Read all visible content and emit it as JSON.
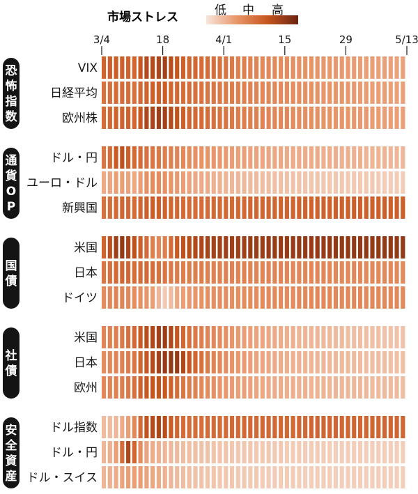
{
  "chart_data": {
    "type": "heatmap",
    "legend": {
      "title": "市場ストレス",
      "levels": [
        "低",
        "中",
        "高"
      ],
      "colors": [
        "#f7e6dc",
        "#e8966a",
        "#c8561f",
        "#6b2410"
      ]
    },
    "x_ticks": [
      {
        "label": "3/4",
        "col": 0
      },
      {
        "label": "18",
        "col": 10
      },
      {
        "label": "4/1",
        "col": 20
      },
      {
        "label": "15",
        "col": 30
      },
      {
        "label": "29",
        "col": 40
      },
      {
        "label": "5/13",
        "col": 50
      }
    ],
    "columns": 50,
    "groups": [
      {
        "label": "恐怖指数",
        "rows": [
          {
            "name": "VIX",
            "values": [
              0.6,
              0.62,
              0.63,
              0.62,
              0.6,
              0.58,
              0.66,
              0.74,
              0.74,
              0.77,
              0.8,
              0.72,
              0.66,
              0.61,
              0.58,
              0.57,
              0.55,
              0.55,
              0.53,
              0.52,
              0.5,
              0.48,
              0.46,
              0.45,
              0.43,
              0.42,
              0.4,
              0.4,
              0.39,
              0.38,
              0.38,
              0.37,
              0.36,
              0.35,
              0.35,
              0.34,
              0.33,
              0.33,
              0.32,
              0.32,
              0.31,
              0.31,
              0.3,
              0.3,
              0.3,
              0.29,
              0.29,
              0.29,
              0.28,
              0.28
            ]
          },
          {
            "name": "日経平均",
            "values": [
              0.52,
              0.53,
              0.55,
              0.55,
              0.54,
              0.52,
              0.56,
              0.6,
              0.62,
              0.62,
              0.63,
              0.58,
              0.56,
              0.54,
              0.53,
              0.52,
              0.51,
              0.5,
              0.49,
              0.48,
              0.47,
              0.46,
              0.45,
              0.44,
              0.43,
              0.42,
              0.41,
              0.4,
              0.4,
              0.39,
              0.38,
              0.38,
              0.37,
              0.36,
              0.36,
              0.35,
              0.34,
              0.34,
              0.33,
              0.33,
              0.32,
              0.32,
              0.31,
              0.31,
              0.3,
              0.3,
              0.3,
              0.29,
              0.29,
              0.29
            ]
          },
          {
            "name": "欧州株",
            "values": [
              0.55,
              0.57,
              0.6,
              0.6,
              0.6,
              0.58,
              0.66,
              0.76,
              0.78,
              0.82,
              0.8,
              0.74,
              0.68,
              0.62,
              0.58,
              0.56,
              0.55,
              0.54,
              0.52,
              0.51,
              0.5,
              0.48,
              0.47,
              0.46,
              0.45,
              0.44,
              0.43,
              0.42,
              0.41,
              0.4,
              0.4,
              0.39,
              0.38,
              0.37,
              0.37,
              0.36,
              0.35,
              0.35,
              0.34,
              0.34,
              0.33,
              0.33,
              0.32,
              0.32,
              0.31,
              0.31,
              0.3,
              0.3,
              0.3,
              0.29
            ]
          }
        ]
      },
      {
        "label": "通貨OP",
        "rows": [
          {
            "name": "ドル・円",
            "values": [
              0.5,
              0.55,
              0.65,
              0.7,
              0.62,
              0.56,
              0.55,
              0.52,
              0.5,
              0.48,
              0.45,
              0.44,
              0.42,
              0.4,
              0.38,
              0.36,
              0.35,
              0.34,
              0.33,
              0.32,
              0.31,
              0.3,
              0.3,
              0.29,
              0.28,
              0.28,
              0.27,
              0.27,
              0.26,
              0.26,
              0.25,
              0.25,
              0.25,
              0.24,
              0.24,
              0.24,
              0.23,
              0.23,
              0.23,
              0.22,
              0.22,
              0.22,
              0.22,
              0.21,
              0.21,
              0.21,
              0.21,
              0.2,
              0.2,
              0.2
            ]
          },
          {
            "name": "ユーロ・ドル",
            "values": [
              0.25,
              0.27,
              0.3,
              0.3,
              0.28,
              0.26,
              0.3,
              0.36,
              0.38,
              0.38,
              0.36,
              0.34,
              0.32,
              0.3,
              0.28,
              0.26,
              0.25,
              0.24,
              0.23,
              0.22,
              0.21,
              0.2,
              0.2,
              0.19,
              0.18,
              0.18,
              0.17,
              0.17,
              0.16,
              0.16,
              0.15,
              0.15,
              0.15,
              0.14,
              0.14,
              0.14,
              0.13,
              0.13,
              0.13,
              0.13,
              0.12,
              0.12,
              0.12,
              0.12,
              0.12,
              0.11,
              0.11,
              0.11,
              0.11,
              0.11
            ]
          },
          {
            "name": "新興国",
            "values": [
              0.52,
              0.54,
              0.56,
              0.58,
              0.56,
              0.55,
              0.58,
              0.62,
              0.63,
              0.62,
              0.6,
              0.58,
              0.56,
              0.55,
              0.55,
              0.55,
              0.55,
              0.55,
              0.56,
              0.56,
              0.56,
              0.57,
              0.57,
              0.57,
              0.58,
              0.58,
              0.58,
              0.58,
              0.59,
              0.59,
              0.59,
              0.59,
              0.6,
              0.6,
              0.6,
              0.6,
              0.6,
              0.6,
              0.61,
              0.61,
              0.61,
              0.61,
              0.61,
              0.61,
              0.62,
              0.62,
              0.62,
              0.62,
              0.62,
              0.62
            ]
          }
        ]
      },
      {
        "label": "国債",
        "rows": [
          {
            "name": "米国",
            "values": [
              0.6,
              0.7,
              0.82,
              0.86,
              0.78,
              0.7,
              0.62,
              0.55,
              0.45,
              0.4,
              0.45,
              0.55,
              0.65,
              0.7,
              0.72,
              0.75,
              0.77,
              0.79,
              0.8,
              0.8,
              0.81,
              0.81,
              0.82,
              0.82,
              0.83,
              0.83,
              0.83,
              0.84,
              0.84,
              0.84,
              0.84,
              0.85,
              0.85,
              0.85,
              0.85,
              0.85,
              0.85,
              0.86,
              0.86,
              0.86,
              0.86,
              0.86,
              0.86,
              0.86,
              0.86,
              0.86,
              0.86,
              0.86,
              0.86,
              0.86
            ]
          },
          {
            "name": "日本",
            "values": [
              0.5,
              0.52,
              0.56,
              0.58,
              0.56,
              0.54,
              0.55,
              0.56,
              0.54,
              0.52,
              0.5,
              0.48,
              0.47,
              0.46,
              0.46,
              0.45,
              0.45,
              0.44,
              0.44,
              0.44,
              0.43,
              0.43,
              0.43,
              0.43,
              0.42,
              0.42,
              0.42,
              0.42,
              0.42,
              0.42,
              0.41,
              0.41,
              0.41,
              0.41,
              0.41,
              0.41,
              0.41,
              0.4,
              0.4,
              0.4,
              0.4,
              0.4,
              0.4,
              0.4,
              0.4,
              0.4,
              0.4,
              0.4,
              0.4,
              0.4
            ]
          },
          {
            "name": "ドイツ",
            "values": [
              0.38,
              0.4,
              0.42,
              0.42,
              0.4,
              0.38,
              0.36,
              0.34,
              0.3,
              0.2,
              0.12,
              0.18,
              0.26,
              0.3,
              0.32,
              0.34,
              0.35,
              0.36,
              0.36,
              0.37,
              0.37,
              0.37,
              0.38,
              0.38,
              0.38,
              0.38,
              0.39,
              0.39,
              0.39,
              0.39,
              0.39,
              0.39,
              0.4,
              0.4,
              0.4,
              0.4,
              0.4,
              0.4,
              0.4,
              0.4,
              0.4,
              0.4,
              0.4,
              0.4,
              0.4,
              0.4,
              0.4,
              0.4,
              0.4,
              0.4
            ]
          }
        ]
      },
      {
        "label": "社債",
        "rows": [
          {
            "name": "米国",
            "values": [
              0.42,
              0.44,
              0.46,
              0.48,
              0.52,
              0.56,
              0.64,
              0.72,
              0.76,
              0.8,
              0.82,
              0.76,
              0.66,
              0.58,
              0.52,
              0.48,
              0.45,
              0.42,
              0.4,
              0.38,
              0.36,
              0.34,
              0.32,
              0.3,
              0.29,
              0.28,
              0.27,
              0.26,
              0.25,
              0.24,
              0.23,
              0.22,
              0.21,
              0.21,
              0.2,
              0.2,
              0.19,
              0.19,
              0.18,
              0.18,
              0.17,
              0.17,
              0.17,
              0.16,
              0.16,
              0.16,
              0.15,
              0.15,
              0.15,
              0.15
            ]
          },
          {
            "name": "日本",
            "values": [
              0.38,
              0.4,
              0.42,
              0.44,
              0.46,
              0.5,
              0.58,
              0.66,
              0.74,
              0.8,
              0.84,
              0.86,
              0.84,
              0.76,
              0.66,
              0.58,
              0.52,
              0.47,
              0.43,
              0.4,
              0.37,
              0.35,
              0.33,
              0.31,
              0.29,
              0.28,
              0.27,
              0.26,
              0.25,
              0.24,
              0.23,
              0.22,
              0.22,
              0.21,
              0.21,
              0.2,
              0.2,
              0.19,
              0.19,
              0.19,
              0.18,
              0.18,
              0.18,
              0.17,
              0.17,
              0.17,
              0.17,
              0.16,
              0.16,
              0.16
            ]
          },
          {
            "name": "欧州",
            "values": [
              0.4,
              0.42,
              0.44,
              0.46,
              0.48,
              0.52,
              0.6,
              0.66,
              0.68,
              0.68,
              0.66,
              0.6,
              0.54,
              0.5,
              0.46,
              0.43,
              0.4,
              0.38,
              0.36,
              0.34,
              0.32,
              0.31,
              0.3,
              0.29,
              0.28,
              0.27,
              0.26,
              0.25,
              0.24,
              0.24,
              0.23,
              0.23,
              0.22,
              0.22,
              0.21,
              0.21,
              0.21,
              0.2,
              0.2,
              0.2,
              0.19,
              0.19,
              0.19,
              0.19,
              0.18,
              0.18,
              0.18,
              0.18,
              0.18,
              0.17
            ]
          }
        ]
      },
      {
        "label": "安全資産",
        "rows": [
          {
            "name": "ドル指数",
            "values": [
              0.18,
              0.18,
              0.2,
              0.24,
              0.3,
              0.4,
              0.55,
              0.68,
              0.74,
              0.76,
              0.72,
              0.64,
              0.58,
              0.55,
              0.54,
              0.54,
              0.54,
              0.55,
              0.55,
              0.55,
              0.55,
              0.56,
              0.56,
              0.56,
              0.56,
              0.56,
              0.57,
              0.57,
              0.57,
              0.57,
              0.57,
              0.57,
              0.57,
              0.57,
              0.58,
              0.58,
              0.58,
              0.58,
              0.58,
              0.58,
              0.58,
              0.58,
              0.58,
              0.58,
              0.58,
              0.58,
              0.58,
              0.58,
              0.58,
              0.58
            ]
          },
          {
            "name": "ドル・円",
            "values": [
              0.2,
              0.22,
              0.3,
              0.55,
              0.76,
              0.58,
              0.38,
              0.28,
              0.24,
              0.22,
              0.2,
              0.19,
              0.18,
              0.17,
              0.16,
              0.16,
              0.15,
              0.15,
              0.14,
              0.14,
              0.14,
              0.13,
              0.13,
              0.13,
              0.13,
              0.12,
              0.12,
              0.12,
              0.12,
              0.12,
              0.11,
              0.11,
              0.11,
              0.11,
              0.11,
              0.11,
              0.11,
              0.1,
              0.1,
              0.1,
              0.1,
              0.1,
              0.1,
              0.1,
              0.1,
              0.1,
              0.1,
              0.1,
              0.1,
              0.1
            ]
          },
          {
            "name": "ドル・スイス",
            "values": [
              0.2,
              0.22,
              0.24,
              0.28,
              0.3,
              0.3,
              0.3,
              0.28,
              0.26,
              0.24,
              0.22,
              0.2,
              0.18,
              0.17,
              0.16,
              0.15,
              0.15,
              0.14,
              0.14,
              0.13,
              0.13,
              0.13,
              0.12,
              0.12,
              0.12,
              0.12,
              0.11,
              0.11,
              0.11,
              0.11,
              0.11,
              0.11,
              0.1,
              0.1,
              0.1,
              0.1,
              0.1,
              0.1,
              0.1,
              0.1,
              0.1,
              0.1,
              0.1,
              0.1,
              0.1,
              0.1,
              0.1,
              0.1,
              0.1,
              0.1
            ]
          }
        ]
      }
    ]
  }
}
